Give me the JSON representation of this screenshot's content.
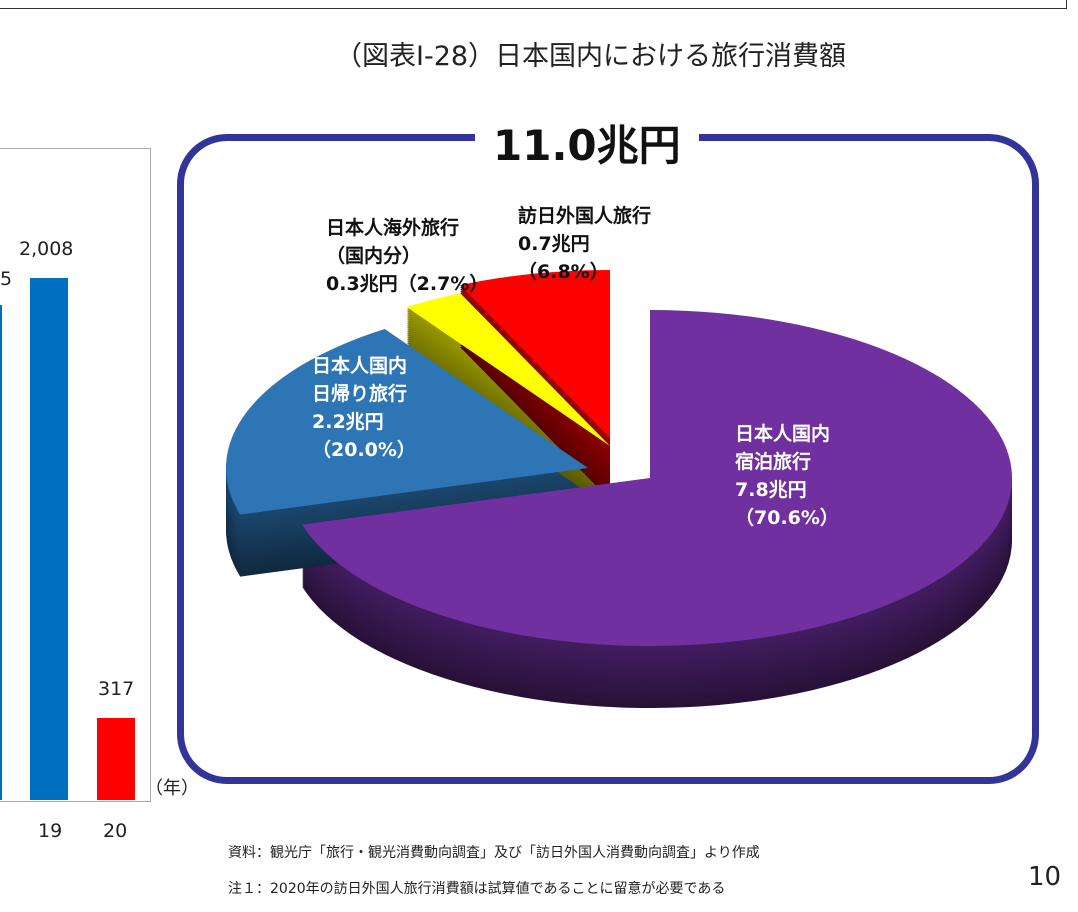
{
  "title": "（図表Ⅰ-28）日本国内における旅行消費額",
  "source": "資料：観光庁「旅行・観光消費動向調査」及び「訪日外国人消費動向調査」より作成",
  "note": "注１：2020年の訪日外国人旅行消費額は試算値であることに留意が必要である",
  "page_number": "10",
  "chart_data": [
    {
      "type": "bar",
      "categories": [
        "19",
        "20"
      ],
      "values": [
        2008,
        317
      ],
      "value_labels": [
        "2,008",
        "317"
      ],
      "partial_label": "5",
      "x_unit": "（年）",
      "colors": [
        "#0070c0",
        "#ff0000"
      ]
    },
    {
      "type": "pie",
      "title": "11.0兆円",
      "slices": [
        {
          "label": "日本人国内\n宿泊旅行\n7.8兆円\n（70.6%）",
          "value": 7.8,
          "percent": 70.6,
          "color": "#7030a0",
          "label_color": "#ffffff"
        },
        {
          "label": "日本人国内\n日帰り旅行\n2.2兆円\n（20.0%）",
          "value": 2.2,
          "percent": 20.0,
          "color": "#2e75b6",
          "label_color": "#ffffff"
        },
        {
          "label": "日本人海外旅行\n（国内分）\n0.3兆円（2.7%）",
          "value": 0.3,
          "percent": 2.7,
          "color": "#ffff00",
          "label_color": "#111111"
        },
        {
          "label": "訪日外国人旅行\n0.7兆円\n（6.8%）",
          "value": 0.7,
          "percent": 6.8,
          "color": "#ff0000",
          "label_color": "#111111"
        }
      ]
    }
  ]
}
